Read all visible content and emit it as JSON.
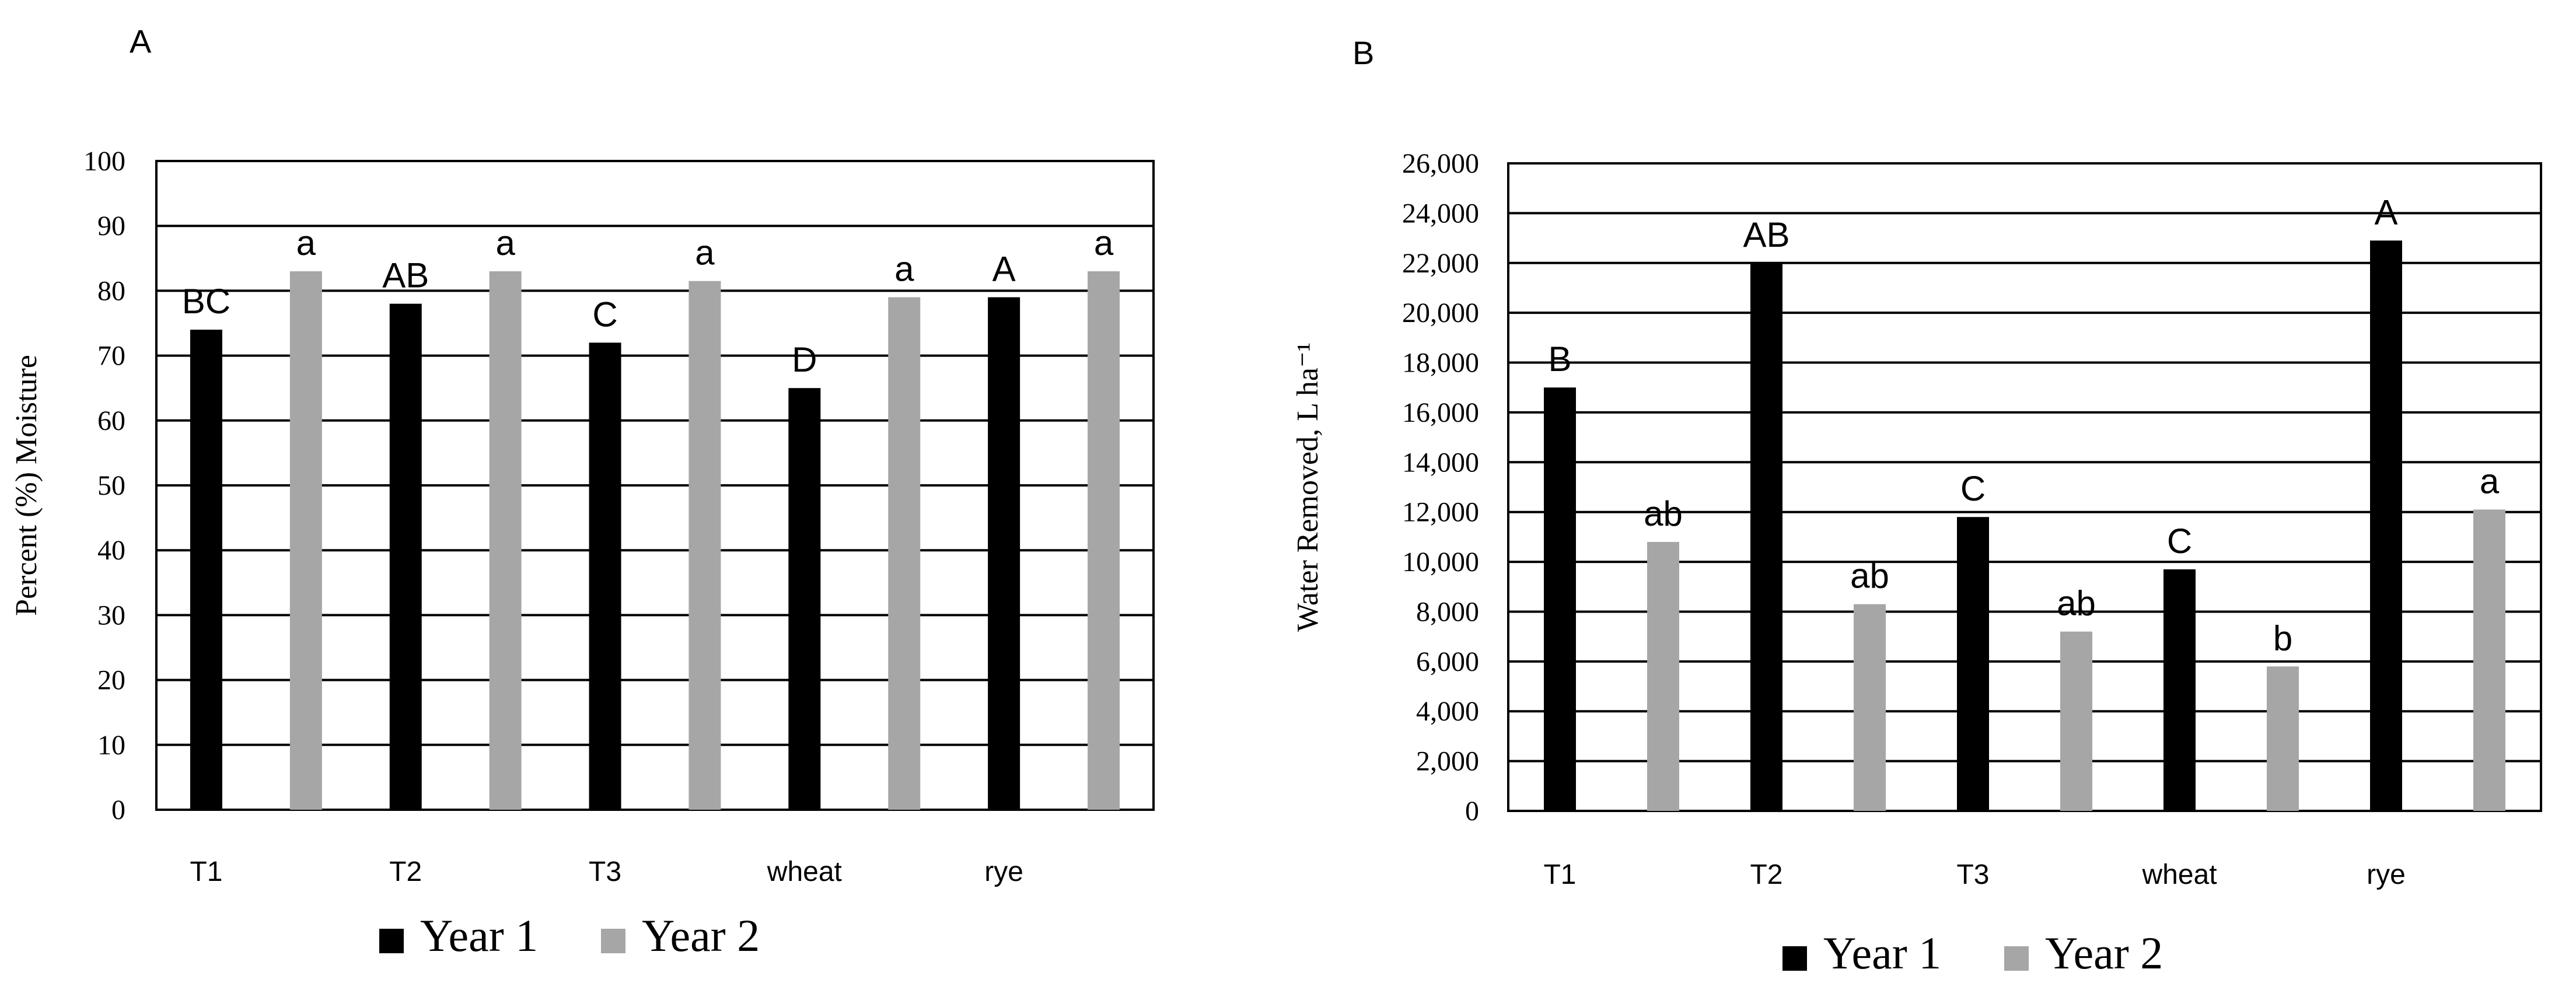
{
  "chart_data": [
    {
      "panel": "A",
      "type": "bar",
      "title": "",
      "ylabel": "Percent (%) Moisture",
      "xlabel": "",
      "ylim": [
        0,
        100
      ],
      "yticks": [
        "0",
        "10",
        "20",
        "30",
        "40",
        "50",
        "60",
        "70",
        "80",
        "90",
        "100"
      ],
      "tickStep": 10,
      "grid": true,
      "categories": [
        "T1",
        "T2",
        "T3",
        "wheat",
        "rye"
      ],
      "series": [
        {
          "name": "Year 1",
          "color": "#000000",
          "values": [
            74,
            78,
            72,
            65,
            79
          ],
          "labels": [
            "BC",
            "AB",
            "C",
            "D",
            "A"
          ]
        },
        {
          "name": "Year 2",
          "color": "#a6a6a6",
          "values": [
            83,
            83,
            81.5,
            79,
            83
          ],
          "labels": [
            "a",
            "a",
            "a",
            "a",
            "a"
          ]
        }
      ],
      "legend": "bottom"
    },
    {
      "panel": "B",
      "type": "bar",
      "title": "",
      "ylabel": "Water Removed, L ha⁻¹",
      "xlabel": "",
      "ylim": [
        0,
        26000
      ],
      "yticks": [
        "0",
        "2,000",
        "4,000",
        "6,000",
        "8,000",
        "10,000",
        "12,000",
        "14,000",
        "16,000",
        "18,000",
        "20,000",
        "22,000",
        "24,000",
        "26,000"
      ],
      "tickStep": 2000,
      "grid": true,
      "categories": [
        "T1",
        "T2",
        "T3",
        "wheat",
        "rye"
      ],
      "series": [
        {
          "name": "Year 1",
          "color": "#000000",
          "values": [
            17000,
            22000,
            11800,
            9700,
            22900
          ],
          "labels": [
            "B",
            "AB",
            "C",
            "C",
            "A"
          ]
        },
        {
          "name": "Year 2",
          "color": "#a6a6a6",
          "values": [
            10800,
            8300,
            7200,
            5800,
            12100
          ],
          "labels": [
            "ab",
            "ab",
            "ab",
            "b",
            "a"
          ]
        }
      ],
      "legend": "bottom"
    }
  ]
}
